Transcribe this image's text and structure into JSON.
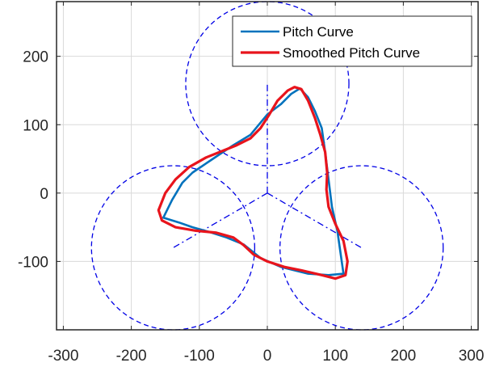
{
  "chart_data": {
    "type": "line",
    "title": "",
    "xlabel": "",
    "ylabel": "",
    "xlim": [
      -310,
      310
    ],
    "ylim": [
      -200,
      280
    ],
    "xticks": [
      -300,
      -200,
      -100,
      0,
      100,
      200,
      300
    ],
    "yticks": [
      -100,
      0,
      100,
      200
    ],
    "xtick_labels": [
      "-300",
      "-200",
      "-100",
      "0",
      "100",
      "200",
      "300"
    ],
    "ytick_labels": [
      "-100",
      "0",
      "100",
      "200"
    ],
    "grid": true,
    "legend": {
      "position": "top-right"
    },
    "series": [
      {
        "name": "Pitch Curve",
        "color": "#0072bd",
        "style": "solid",
        "points": [
          [
            0,
            115
          ],
          [
            20,
            130
          ],
          [
            35,
            145
          ],
          [
            48,
            153
          ],
          [
            60,
            140
          ],
          [
            70,
            120
          ],
          [
            80,
            95
          ],
          [
            85,
            60
          ],
          [
            90,
            20
          ],
          [
            95,
            -20
          ],
          [
            103,
            -55
          ],
          [
            112,
            -118
          ],
          [
            90,
            -120
          ],
          [
            60,
            -118
          ],
          [
            20,
            -108
          ],
          [
            -10,
            -95
          ],
          [
            -35,
            -75
          ],
          [
            -60,
            -65
          ],
          [
            -85,
            -57
          ],
          [
            -110,
            -50
          ],
          [
            -130,
            -43
          ],
          [
            -153,
            -36
          ],
          [
            -140,
            -10
          ],
          [
            -125,
            15
          ],
          [
            -110,
            30
          ],
          [
            -80,
            50
          ],
          [
            -50,
            70
          ],
          [
            -25,
            85
          ],
          [
            0,
            115
          ]
        ]
      },
      {
        "name": "Smoothed Pitch Curve",
        "color": "#e8141c",
        "style": "solid",
        "points": [
          [
            3,
            115
          ],
          [
            15,
            135
          ],
          [
            30,
            150
          ],
          [
            40,
            155
          ],
          [
            50,
            152
          ],
          [
            60,
            135
          ],
          [
            70,
            110
          ],
          [
            78,
            85
          ],
          [
            85,
            60
          ],
          [
            88,
            30
          ],
          [
            87,
            5
          ],
          [
            90,
            -20
          ],
          [
            100,
            -45
          ],
          [
            112,
            -70
          ],
          [
            118,
            -100
          ],
          [
            115,
            -120
          ],
          [
            100,
            -125
          ],
          [
            80,
            -120
          ],
          [
            50,
            -113
          ],
          [
            25,
            -108
          ],
          [
            0,
            -100
          ],
          [
            -20,
            -90
          ],
          [
            -35,
            -76
          ],
          [
            -50,
            -65
          ],
          [
            -75,
            -58
          ],
          [
            -105,
            -55
          ],
          [
            -135,
            -50
          ],
          [
            -155,
            -40
          ],
          [
            -160,
            -25
          ],
          [
            -150,
            0
          ],
          [
            -135,
            20
          ],
          [
            -115,
            38
          ],
          [
            -90,
            52
          ],
          [
            -65,
            62
          ],
          [
            -45,
            70
          ],
          [
            -25,
            80
          ],
          [
            -10,
            95
          ],
          [
            3,
            115
          ]
        ]
      }
    ],
    "construction_circles": [
      {
        "cx": 0,
        "cy": 160,
        "r": 120
      },
      {
        "cx": -138.6,
        "cy": -80,
        "r": 120
      },
      {
        "cx": 138.6,
        "cy": -80,
        "r": 120
      }
    ],
    "construction_lines": [
      [
        [
          0,
          0
        ],
        [
          0,
          160
        ]
      ],
      [
        [
          0,
          0
        ],
        [
          -138.6,
          -80
        ]
      ],
      [
        [
          0,
          0
        ],
        [
          138.6,
          -80
        ]
      ]
    ],
    "construction_color": "#0000e6"
  }
}
